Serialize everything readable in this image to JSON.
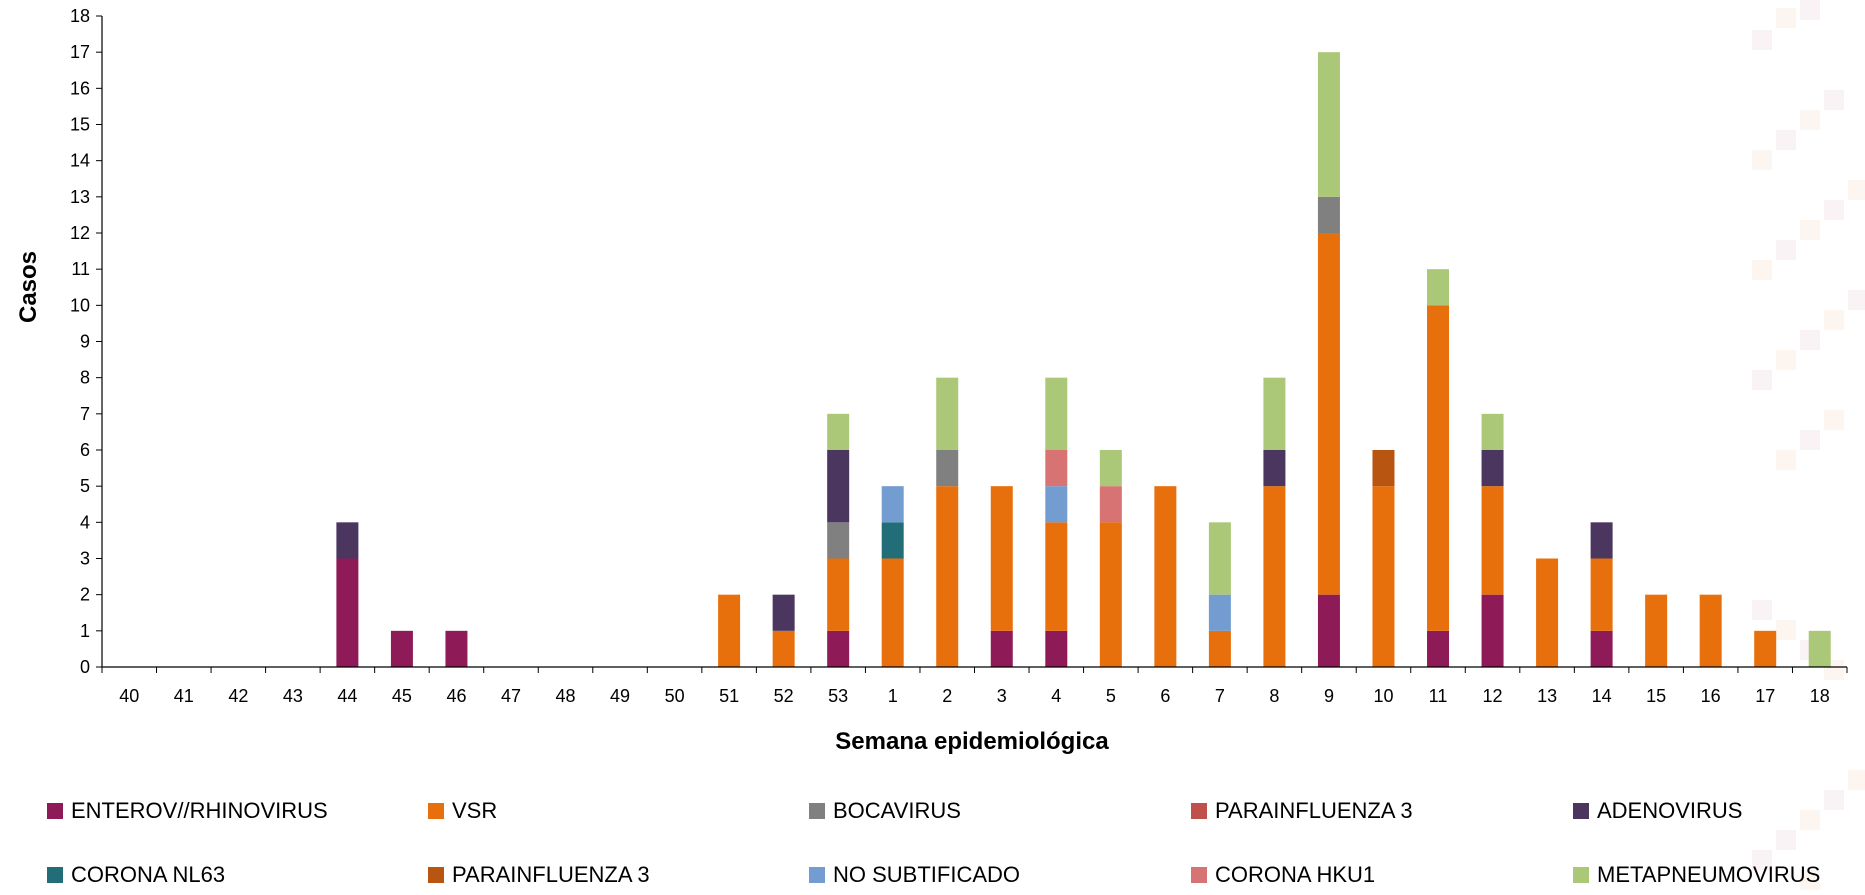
{
  "chart_data": {
    "type": "bar",
    "stacked": true,
    "xlabel": "Semana epidemiológica",
    "ylabel": "Casos",
    "ylim": [
      0,
      18
    ],
    "yticks": [
      0,
      1,
      2,
      3,
      4,
      5,
      6,
      7,
      8,
      9,
      10,
      11,
      12,
      13,
      14,
      15,
      16,
      17,
      18
    ],
    "grid": false,
    "legend_position": "bottom",
    "categories": [
      "40",
      "41",
      "42",
      "43",
      "44",
      "45",
      "46",
      "47",
      "48",
      "49",
      "50",
      "51",
      "52",
      "53",
      "1",
      "2",
      "3",
      "4",
      "5",
      "6",
      "7",
      "8",
      "9",
      "10",
      "11",
      "12",
      "13",
      "14",
      "15",
      "16",
      "17",
      "18"
    ],
    "series": [
      {
        "name": "ENTEROV//RHINOVIRUS",
        "color": "#8e1b57",
        "values": [
          0,
          0,
          0,
          0,
          3,
          1,
          1,
          0,
          0,
          0,
          0,
          0,
          0,
          1,
          0,
          0,
          1,
          1,
          0,
          0,
          0,
          0,
          2,
          0,
          1,
          2,
          0,
          1,
          0,
          0,
          0,
          0
        ]
      },
      {
        "name": "VSR",
        "color": "#e8700c",
        "values": [
          0,
          0,
          0,
          0,
          0,
          0,
          0,
          0,
          0,
          0,
          0,
          2,
          1,
          2,
          3,
          5,
          4,
          3,
          4,
          5,
          1,
          5,
          10,
          5,
          9,
          3,
          3,
          2,
          2,
          2,
          1,
          0
        ]
      },
      {
        "name": "BOCAVIRUS",
        "color": "#808080",
        "values": [
          0,
          0,
          0,
          0,
          0,
          0,
          0,
          0,
          0,
          0,
          0,
          0,
          0,
          1,
          0,
          1,
          0,
          0,
          0,
          0,
          0,
          0,
          1,
          0,
          0,
          0,
          0,
          0,
          0,
          0,
          0,
          0
        ]
      },
      {
        "name": "PARAINFLUENZA 3",
        "color": "#c0504d",
        "values": [
          0,
          0,
          0,
          0,
          0,
          0,
          0,
          0,
          0,
          0,
          0,
          0,
          0,
          0,
          0,
          0,
          0,
          0,
          0,
          0,
          0,
          0,
          0,
          0,
          0,
          0,
          0,
          0,
          0,
          0,
          0,
          0
        ]
      },
      {
        "name": "ADENOVIRUS",
        "color": "#4b3660",
        "values": [
          0,
          0,
          0,
          0,
          1,
          0,
          0,
          0,
          0,
          0,
          0,
          0,
          1,
          2,
          0,
          0,
          0,
          0,
          0,
          0,
          0,
          1,
          0,
          0,
          0,
          1,
          0,
          1,
          0,
          0,
          0,
          0
        ]
      },
      {
        "name": "CORONA NL63",
        "color": "#226e78",
        "values": [
          0,
          0,
          0,
          0,
          0,
          0,
          0,
          0,
          0,
          0,
          0,
          0,
          0,
          0,
          1,
          0,
          0,
          0,
          0,
          0,
          0,
          0,
          0,
          0,
          0,
          0,
          0,
          0,
          0,
          0,
          0,
          0
        ]
      },
      {
        "name": "PARAINFLUENZA 3",
        "color": "#b85510",
        "values": [
          0,
          0,
          0,
          0,
          0,
          0,
          0,
          0,
          0,
          0,
          0,
          0,
          0,
          0,
          0,
          0,
          0,
          0,
          0,
          0,
          0,
          0,
          0,
          1,
          0,
          0,
          0,
          0,
          0,
          0,
          0,
          0
        ]
      },
      {
        "name": "NO SUBTIFICADO",
        "color": "#739dd1",
        "values": [
          0,
          0,
          0,
          0,
          0,
          0,
          0,
          0,
          0,
          0,
          0,
          0,
          0,
          0,
          1,
          0,
          0,
          1,
          0,
          0,
          1,
          0,
          0,
          0,
          0,
          0,
          0,
          0,
          0,
          0,
          0,
          0
        ]
      },
      {
        "name": "CORONA HKU1",
        "color": "#d77373",
        "values": [
          0,
          0,
          0,
          0,
          0,
          0,
          0,
          0,
          0,
          0,
          0,
          0,
          0,
          0,
          0,
          0,
          0,
          1,
          1,
          0,
          0,
          0,
          0,
          0,
          0,
          0,
          0,
          0,
          0,
          0,
          0,
          0
        ]
      },
      {
        "name": "METAPNEUMOVIRUS",
        "color": "#abc878",
        "values": [
          0,
          0,
          0,
          0,
          0,
          0,
          0,
          0,
          0,
          0,
          0,
          0,
          0,
          1,
          0,
          2,
          0,
          2,
          1,
          0,
          2,
          2,
          4,
          0,
          1,
          1,
          0,
          0,
          0,
          0,
          0,
          1
        ]
      }
    ]
  }
}
